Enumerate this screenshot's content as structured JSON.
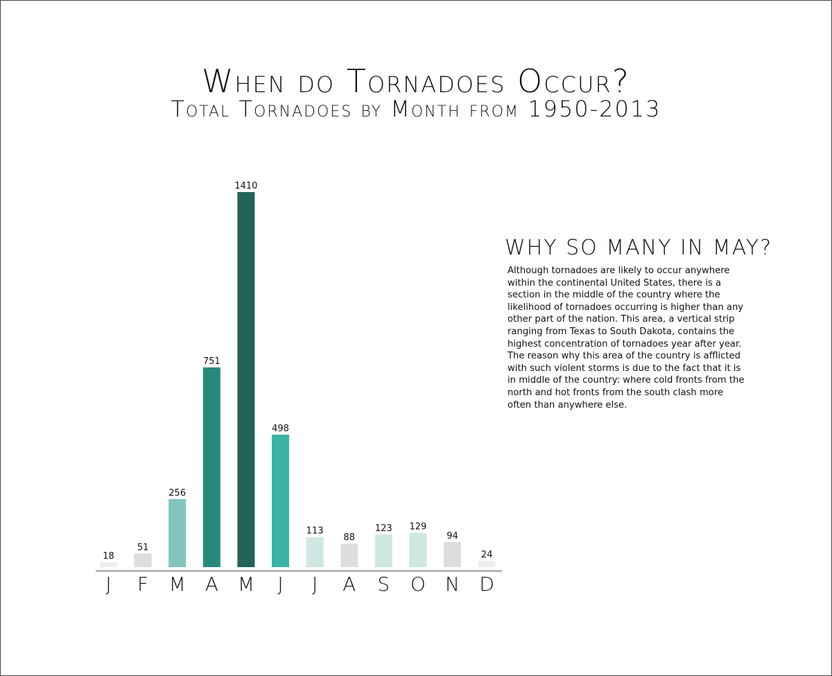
{
  "title": "When do Tornadoes Occur?",
  "subtitle": "Total Tornadoes by Month from 1950-2013",
  "sidebar": {
    "heading": "WHY SO MANY IN MAY?",
    "body": "Although tornadoes are likely to occur anywhere within the continental United States, there is a section in the middle of the country where the likelihood of tornadoes occurring is higher than any other part of the nation. This area, a vertical strip ranging from Texas to South Dakota, contains the highest concentration of tornadoes year after year. The reason why this area of the country is afflicted with such violent storms is due to the fact that it is in middle of the country: where cold fronts from the north and hot fronts from the south clash more often than anywhere else."
  },
  "chart_data": {
    "type": "bar",
    "title": "When do Tornadoes Occur?",
    "subtitle": "Total Tornadoes by Month from 1950-2013",
    "categories": [
      "J",
      "F",
      "M",
      "A",
      "M",
      "J",
      "J",
      "A",
      "S",
      "O",
      "N",
      "D"
    ],
    "values": [
      18,
      51,
      256,
      751,
      1410,
      498,
      113,
      88,
      123,
      129,
      94,
      24
    ],
    "colors": [
      "#eeeeee",
      "#dddddd",
      "#84c5bb",
      "#258a7c",
      "#236358",
      "#38b3a6",
      "#cfe7e2",
      "#dddddd",
      "#cfe7e2",
      "#cfe7e2",
      "#dddddd",
      "#eeeeee"
    ],
    "axis_color": "#b5b5b5",
    "ylim": [
      0,
      1410
    ],
    "grid": false,
    "data_labels": true
  }
}
